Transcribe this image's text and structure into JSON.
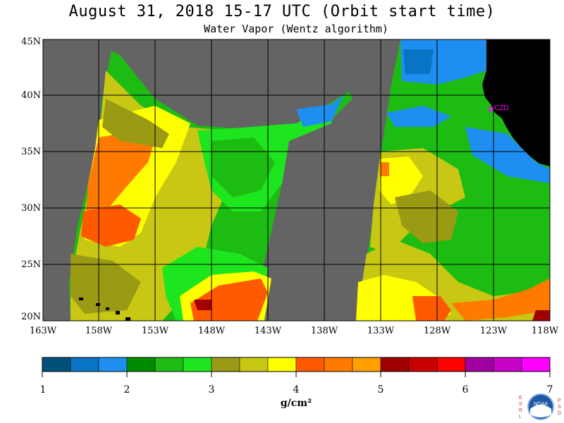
{
  "title": "August 31, 2018  15-17 UTC  (Orbit start time)",
  "subtitle": "Water Vapor (Wentz algorithm)",
  "latitude_labels": [
    "45N",
    "40N",
    "35N",
    "30N",
    "25N",
    "20N"
  ],
  "longitude_labels": [
    "163W",
    "158W",
    "153W",
    "148W",
    "143W",
    "138W",
    "133W",
    "128W",
    "123W",
    "118W"
  ],
  "station_label": "CZD",
  "colorbar": {
    "ticks": [
      "1",
      "2",
      "3",
      "4",
      "5",
      "6",
      "7"
    ],
    "unit": "g/cm²",
    "colors": [
      "#00507a",
      "#0a74c4",
      "#1e8ef0",
      "#008c00",
      "#1cbc12",
      "#1ee61e",
      "#9a9a14",
      "#c8c814",
      "#ffff00",
      "#ff5a00",
      "#ff7a00",
      "#ffa000",
      "#a00000",
      "#c80000",
      "#ff0000",
      "#a000a0",
      "#c800c8",
      "#ff00ff"
    ]
  },
  "logo": {
    "left_text": "ESRL",
    "right_text": "PSD",
    "center_text": "NOAA"
  },
  "colors": {
    "nodata": "#646464",
    "land": "#000000",
    "grid": "#000000",
    "station": "#ff00ff"
  }
}
